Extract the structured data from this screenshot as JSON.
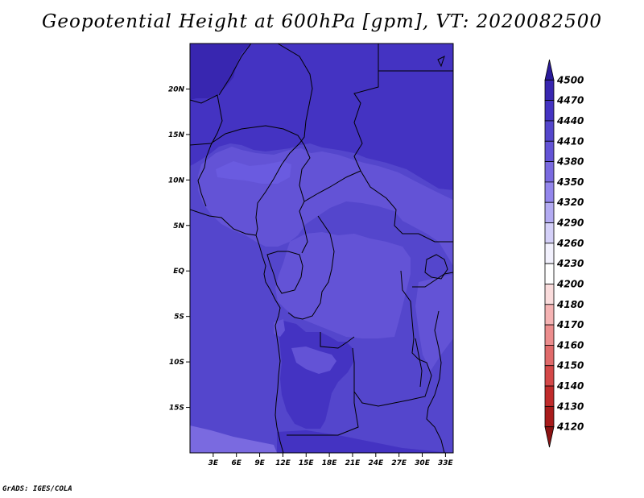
{
  "title": "Geopotential Height at 600hPa [gpm], VT: 2020082500",
  "credit": "GrADS: IGES/COLA",
  "map": {
    "lon_range": [
      0,
      34
    ],
    "lat_range": [
      -20,
      25
    ],
    "lat_ticks": [
      {
        "value": 20,
        "label": "20N"
      },
      {
        "value": 15,
        "label": "15N"
      },
      {
        "value": 10,
        "label": "10N"
      },
      {
        "value": 5,
        "label": "5N"
      },
      {
        "value": 0,
        "label": "EQ"
      },
      {
        "value": -5,
        "label": "5S"
      },
      {
        "value": -10,
        "label": "10S"
      },
      {
        "value": -15,
        "label": "15S"
      }
    ],
    "lon_ticks": [
      {
        "value": 3,
        "label": "3E"
      },
      {
        "value": 6,
        "label": "6E"
      },
      {
        "value": 9,
        "label": "9E"
      },
      {
        "value": 12,
        "label": "12E"
      },
      {
        "value": 15,
        "label": "15E"
      },
      {
        "value": 18,
        "label": "18E"
      },
      {
        "value": 21,
        "label": "21E"
      },
      {
        "value": 24,
        "label": "24E"
      },
      {
        "value": 27,
        "label": "27E"
      },
      {
        "value": 30,
        "label": "30E"
      },
      {
        "value": 33,
        "label": "33E"
      }
    ]
  },
  "colorbar": {
    "labels": [
      "4500",
      "4470",
      "4440",
      "4410",
      "4380",
      "4350",
      "4320",
      "4290",
      "4260",
      "4230",
      "4200",
      "4180",
      "4170",
      "4160",
      "4150",
      "4140",
      "4130",
      "4120"
    ],
    "colors": [
      "#2a1a9a",
      "#3826b0",
      "#4433c2",
      "#5446cc",
      "#6353d6",
      "#7a6ae0",
      "#9386ec",
      "#b3abf2",
      "#d4d0f8",
      "#f2f1fd",
      "#ffffff",
      "#fadcdc",
      "#f5b3b3",
      "#ec8d8d",
      "#e06a6a",
      "#d44848",
      "#c02b2b",
      "#a81b1b",
      "#8b1212"
    ]
  },
  "field_colors": {
    "h4470": "#3826b0",
    "h4440": "#4433c2",
    "h4410": "#5446cc",
    "h4380": "#6353d6",
    "h4350": "#7a6ae0"
  }
}
